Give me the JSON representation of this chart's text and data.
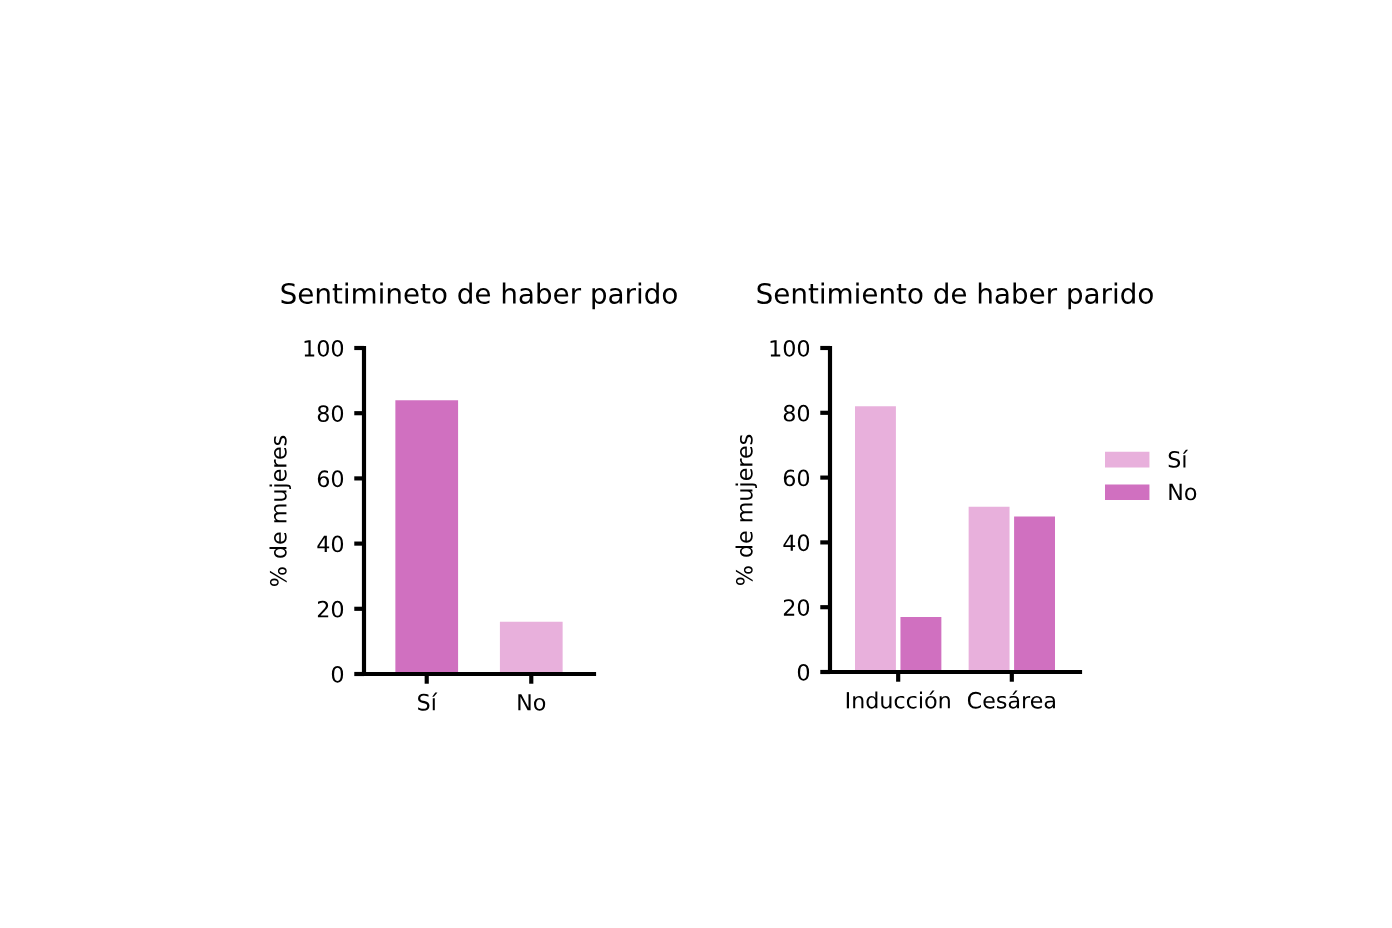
{
  "chart_data": [
    {
      "type": "bar",
      "title": "Sentimineto de haber parido",
      "ylabel": "% de mujeres",
      "categories": [
        "Sí",
        "No"
      ],
      "values": [
        84,
        16
      ],
      "colors": [
        "#d070c0",
        "#e8b0dc"
      ],
      "ylim": [
        0,
        100
      ],
      "yticks": [
        0,
        20,
        40,
        60,
        80,
        100
      ],
      "grid": false,
      "legend": false
    },
    {
      "type": "bar",
      "title": "Sentimiento de haber parido",
      "ylabel": "% de mujeres",
      "categories": [
        "Inducción",
        "Cesárea"
      ],
      "series": [
        {
          "name": "Sí",
          "color": "#e8b0dc",
          "values": [
            82,
            51
          ]
        },
        {
          "name": "No",
          "color": "#d070c0",
          "values": [
            17,
            48
          ]
        }
      ],
      "ylim": [
        0,
        100
      ],
      "yticks": [
        0,
        20,
        40,
        60,
        80,
        100
      ],
      "grid": false,
      "legend": "right"
    }
  ]
}
